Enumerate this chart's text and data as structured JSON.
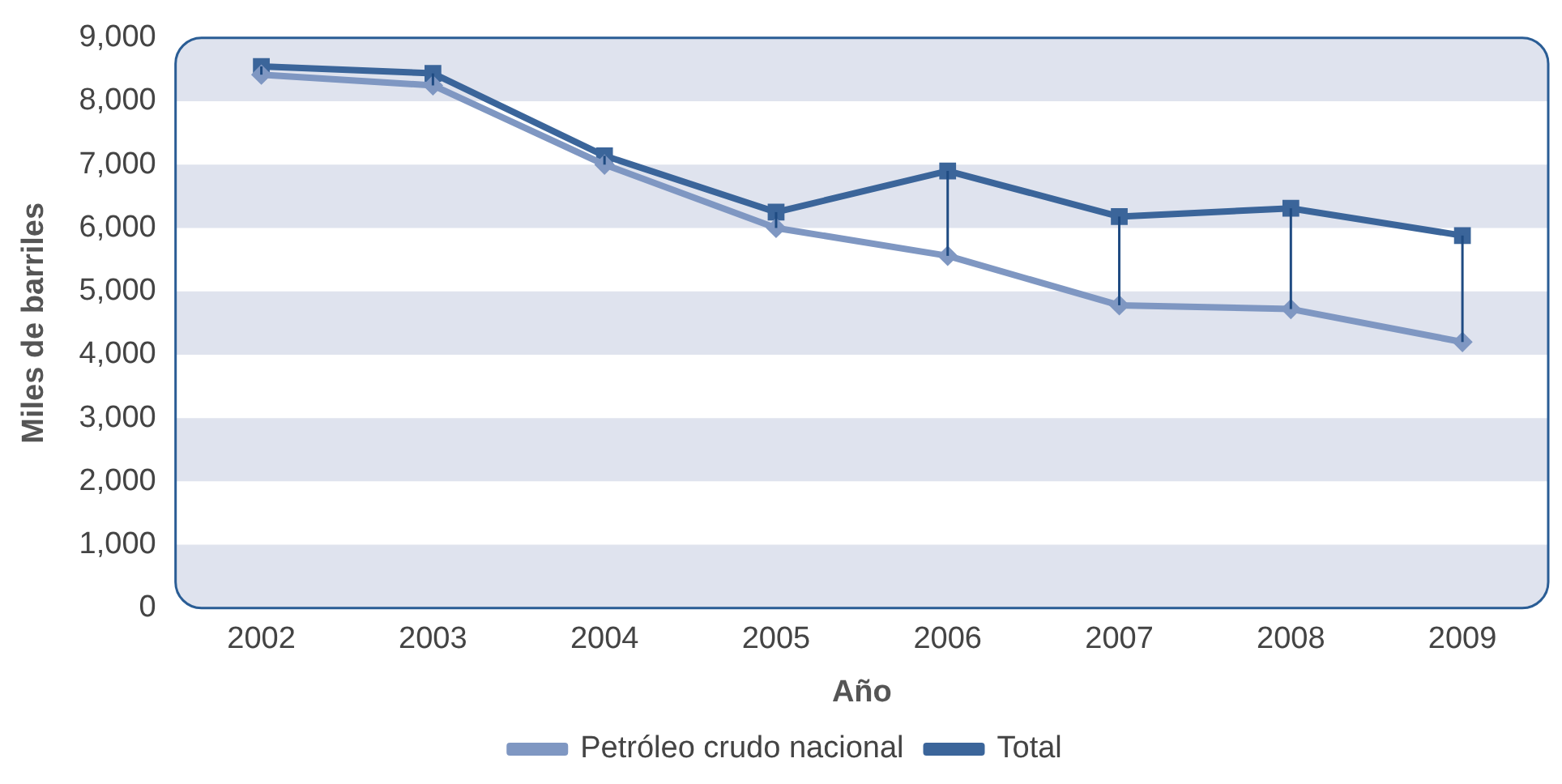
{
  "chart_data": {
    "type": "line",
    "xlabel": "Año",
    "ylabel": "Miles de barriles",
    "categories": [
      "2002",
      "2003",
      "2004",
      "2005",
      "2006",
      "2007",
      "2008",
      "2009"
    ],
    "series": [
      {
        "name": "Petróleo crudo nacional",
        "color": "#7f97c2",
        "marker": "diamond",
        "values": [
          8420,
          8250,
          7000,
          6000,
          5560,
          4780,
          4720,
          4200
        ],
        "errors": [
          [
            8420,
            8550
          ],
          [
            8250,
            8440
          ],
          [
            7000,
            7140
          ],
          [
            6000,
            6250
          ],
          [
            5560,
            6900
          ],
          [
            4780,
            6180
          ],
          [
            4720,
            6310
          ],
          [
            4200,
            5880
          ]
        ]
      },
      {
        "name": "Total",
        "color": "#3b659a",
        "marker": "square",
        "values": [
          8550,
          8440,
          7140,
          6250,
          6900,
          6180,
          6310,
          5880
        ]
      }
    ],
    "ylim": [
      0,
      9000
    ],
    "yticks": [
      {
        "value": 0,
        "label": "0"
      },
      {
        "value": 1000,
        "label": "1,000"
      },
      {
        "value": 2000,
        "label": "2,000"
      },
      {
        "value": 3000,
        "label": "3,000"
      },
      {
        "value": 4000,
        "label": "4,000"
      },
      {
        "value": 5000,
        "label": "5,000"
      },
      {
        "value": 6000,
        "label": "6,000"
      },
      {
        "value": 7000,
        "label": "7,000"
      },
      {
        "value": 8000,
        "label": "8,000"
      },
      {
        "value": 9000,
        "label": "9,000"
      }
    ],
    "bands": [
      {
        "axis": "y",
        "from": 0,
        "to": 1000,
        "color": "#dfe3ee"
      },
      {
        "axis": "y",
        "from": 2000,
        "to": 3000,
        "color": "#dfe3ee"
      },
      {
        "axis": "y",
        "from": 4000,
        "to": 5000,
        "color": "#dfe3ee"
      },
      {
        "axis": "y",
        "from": 6000,
        "to": 7000,
        "color": "#dfe3ee"
      },
      {
        "axis": "y",
        "from": 8000,
        "to": 9000,
        "color": "#dfe3ee"
      }
    ],
    "legend": "bottom",
    "line_style": "solid"
  }
}
